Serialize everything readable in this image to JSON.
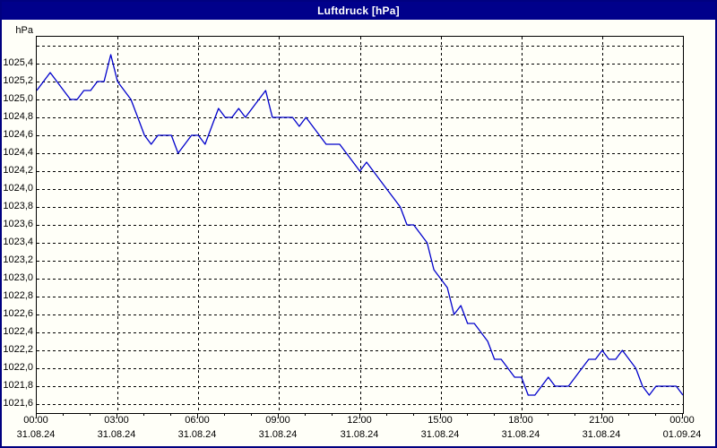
{
  "window": {
    "title": "Luftdruck [hPa]"
  },
  "colors": {
    "titlebar_bg": "#00008B",
    "window_border": "#000080",
    "plot_border": "#000000",
    "grid": "#000000",
    "line": "#0000CC",
    "text": "#000000",
    "background": "#FFFFF8"
  },
  "chart_data": {
    "type": "line",
    "title": "Luftdruck [hPa]",
    "ylabel": "hPa",
    "xlabel": "",
    "grid": "dashed",
    "legend_position": "none",
    "ylim": [
      1021.5,
      1025.7
    ],
    "yticks": [
      {
        "value": 1025.6,
        "label": ""
      },
      {
        "value": 1025.4,
        "label": "1025,4"
      },
      {
        "value": 1025.2,
        "label": "1025,2"
      },
      {
        "value": 1025.0,
        "label": "1025,0"
      },
      {
        "value": 1024.8,
        "label": "1024,8"
      },
      {
        "value": 1024.6,
        "label": "1024,6"
      },
      {
        "value": 1024.4,
        "label": "1024,4"
      },
      {
        "value": 1024.2,
        "label": "1024,2"
      },
      {
        "value": 1024.0,
        "label": "1024,0"
      },
      {
        "value": 1023.8,
        "label": "1023,8"
      },
      {
        "value": 1023.6,
        "label": "1023,6"
      },
      {
        "value": 1023.4,
        "label": "1023,4"
      },
      {
        "value": 1023.2,
        "label": "1023,2"
      },
      {
        "value": 1023.0,
        "label": "1023,0"
      },
      {
        "value": 1022.8,
        "label": "1022,8"
      },
      {
        "value": 1022.6,
        "label": "1022,6"
      },
      {
        "value": 1022.4,
        "label": "1022,4"
      },
      {
        "value": 1022.2,
        "label": "1022,2"
      },
      {
        "value": 1022.0,
        "label": "1022,0"
      },
      {
        "value": 1021.8,
        "label": "1021,8"
      },
      {
        "value": 1021.6,
        "label": "1021,6"
      }
    ],
    "x_hours_total": 24,
    "x_minor_tick_every_hours": 1,
    "x_major_ticks": [
      {
        "hour": 0,
        "time": "00:00",
        "date": "31.08.24"
      },
      {
        "hour": 3,
        "time": "03:00",
        "date": "31.08.24"
      },
      {
        "hour": 6,
        "time": "06:00",
        "date": "31.08.24"
      },
      {
        "hour": 9,
        "time": "09:00",
        "date": "31.08.24"
      },
      {
        "hour": 12,
        "time": "12:00",
        "date": "31.08.24"
      },
      {
        "hour": 15,
        "time": "15:00",
        "date": "31.08.24"
      },
      {
        "hour": 18,
        "time": "18:00",
        "date": "31.08.24"
      },
      {
        "hour": 21,
        "time": "21:00",
        "date": "31.08.24"
      },
      {
        "hour": 24,
        "time": "00:00",
        "date": "01.09.24"
      }
    ],
    "series": [
      {
        "name": "Luftdruck",
        "start_hour": 0,
        "interval_minutes": 15,
        "values": [
          1025.1,
          1025.2,
          1025.3,
          1025.2,
          1025.1,
          1025.0,
          1025.0,
          1025.1,
          1025.1,
          1025.2,
          1025.2,
          1025.5,
          1025.2,
          1025.1,
          1025.0,
          1024.8,
          1024.6,
          1024.5,
          1024.6,
          1024.6,
          1024.6,
          1024.4,
          1024.5,
          1024.6,
          1024.6,
          1024.5,
          1024.7,
          1024.9,
          1024.8,
          1024.8,
          1024.9,
          1024.8,
          1024.9,
          1025.0,
          1025.1,
          1024.8,
          1024.8,
          1024.8,
          1024.8,
          1024.7,
          1024.8,
          1024.7,
          1024.6,
          1024.5,
          1024.5,
          1024.5,
          1024.4,
          1024.3,
          1024.2,
          1024.3,
          1024.2,
          1024.1,
          1024.0,
          1023.9,
          1023.8,
          1023.6,
          1023.6,
          1023.5,
          1023.4,
          1023.1,
          1023.0,
          1022.9,
          1022.6,
          1022.7,
          1022.5,
          1022.5,
          1022.4,
          1022.3,
          1022.1,
          1022.1,
          1022.0,
          1021.9,
          1021.9,
          1021.7,
          1021.7,
          1021.8,
          1021.9,
          1021.8,
          1021.8,
          1021.8,
          1021.9,
          1022.0,
          1022.1,
          1022.1,
          1022.2,
          1022.1,
          1022.1,
          1022.2,
          1022.1,
          1022.0,
          1021.8,
          1021.7,
          1021.8,
          1021.8,
          1021.8,
          1021.8,
          1021.7
        ]
      }
    ]
  }
}
